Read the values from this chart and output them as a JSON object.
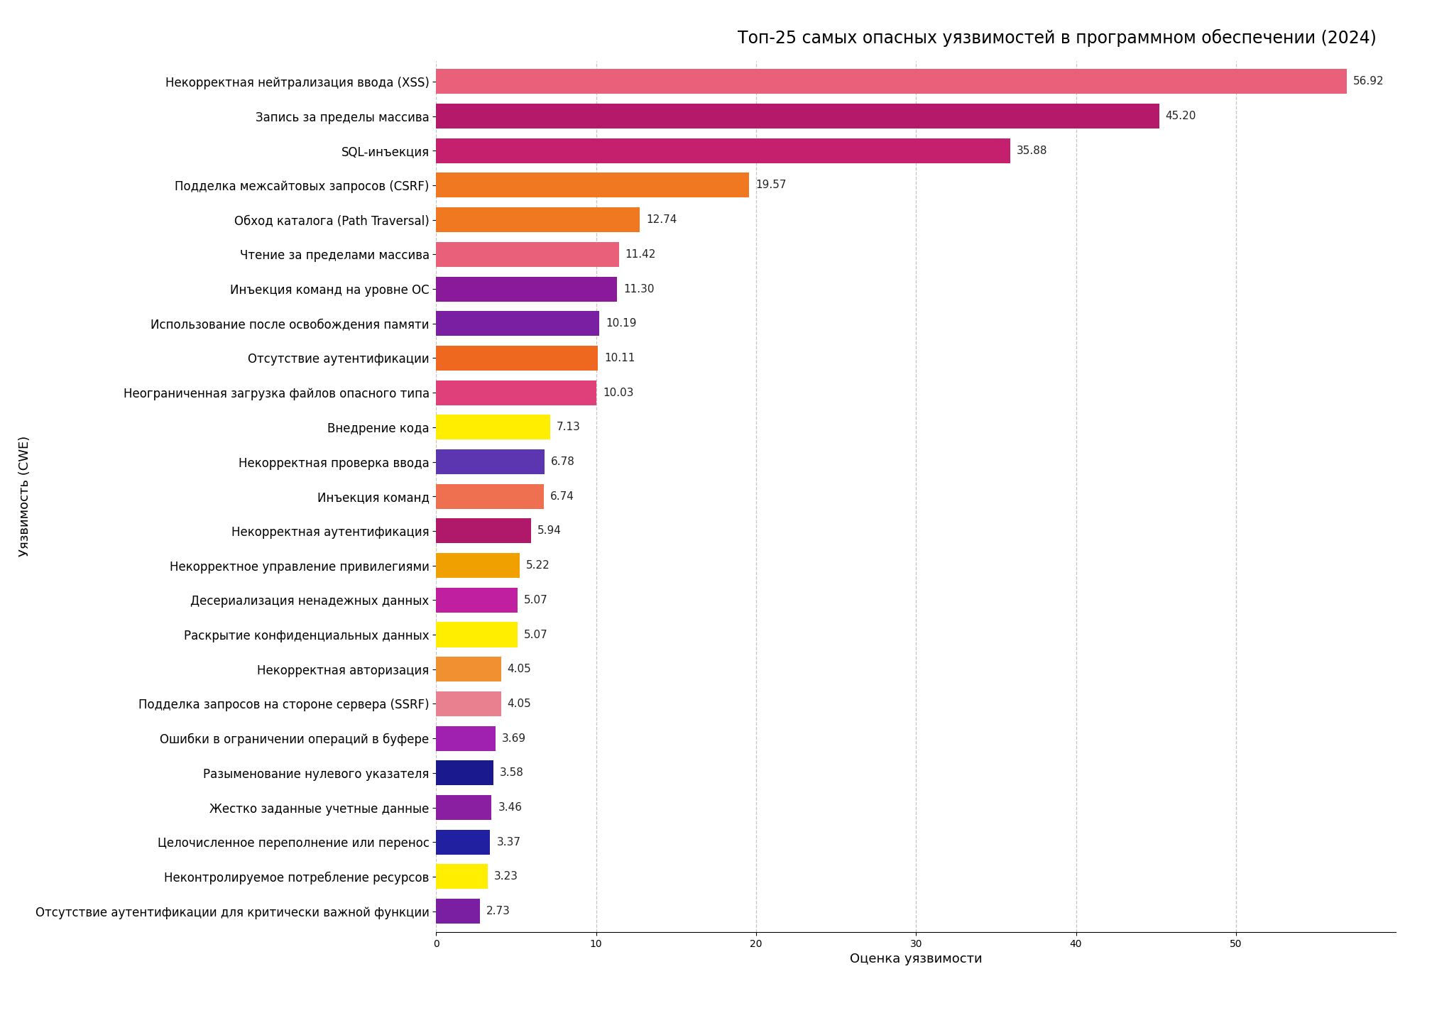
{
  "title": "Топ-25 самых опасных уязвимостей в программном обеспечении (2024)",
  "xlabel": "Оценка уязвимости",
  "ylabel": "Уязвимость (CWE)",
  "categories": [
    "Некорректная нейтрализация ввода (XSS)",
    "Запись за пределы массива",
    "SQL-инъекция",
    "Подделка межсайтовых запросов (CSRF)",
    "Обход каталога (Path Traversal)",
    "Чтение за пределами массива",
    "Инъекция команд на уровне ОС",
    "Использование после освобождения памяти",
    "Отсутствие аутентификации",
    "Неограниченная загрузка файлов опасного типа",
    "Внедрение кода",
    "Некорректная проверка ввода",
    "Инъекция команд",
    "Некорректная аутентификация",
    "Некорректное управление привилегиями",
    "Десериализация ненадежных данных",
    "Раскрытие конфиденциальных данных",
    "Некорректная авторизация",
    "Подделка запросов на стороне сервера (SSRF)",
    "Ошибки в ограничении операций в буфере",
    "Разыменование нулевого указателя",
    "Жестко заданные учетные данные",
    "Целочисленное переполнение или перенос",
    "Неконтролируемое потребление ресурсов",
    "Отсутствие аутентификации для критически важной функции"
  ],
  "values": [
    56.92,
    45.2,
    35.88,
    19.57,
    12.74,
    11.42,
    11.3,
    10.19,
    10.11,
    10.03,
    7.13,
    6.78,
    6.74,
    5.94,
    5.22,
    5.07,
    5.07,
    4.05,
    4.05,
    3.69,
    3.58,
    3.46,
    3.37,
    3.23,
    2.73
  ],
  "colors": [
    "#E8607A",
    "#B5196A",
    "#C4206E",
    "#F07820",
    "#F07820",
    "#E8607A",
    "#8B1A9A",
    "#7B1FA2",
    "#EF6820",
    "#E0407A",
    "#FFEE00",
    "#5C35B0",
    "#EF7050",
    "#B0186A",
    "#F0A000",
    "#C020A0",
    "#FFEE00",
    "#F09030",
    "#E88090",
    "#A020B0",
    "#1A1A8E",
    "#8B1FA2",
    "#2020A0",
    "#FFEE00",
    "#7B1FA2"
  ],
  "xlim": [
    0,
    60
  ],
  "xticks": [
    0,
    10,
    20,
    30,
    40,
    50
  ],
  "background_color": "#FFFFFF",
  "bar_height": 0.72,
  "title_fontsize": 17,
  "tick_fontsize": 12,
  "label_fontsize": 13,
  "value_fontsize": 11,
  "grid_color": "#BBBBBB",
  "grid_linestyle": "--",
  "grid_linewidth": 0.9
}
